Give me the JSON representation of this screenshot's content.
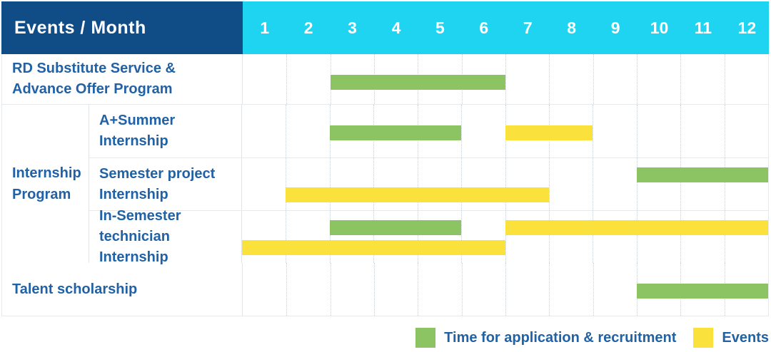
{
  "header": {
    "label": "Events / Month",
    "months": [
      "1",
      "2",
      "3",
      "4",
      "5",
      "6",
      "7",
      "8",
      "9",
      "10",
      "11",
      "12"
    ]
  },
  "colors": {
    "navy": "#104d87",
    "cyan": "#1ed4f0",
    "green": "#8cc363",
    "yellow": "#fbe13c",
    "label_blue": "#2161a5"
  },
  "rows": [
    {
      "id": "rd",
      "label_lines": [
        "RD Substitute Service &",
        "Advance Offer Program"
      ],
      "bars": [
        {
          "color": "green",
          "start": 3,
          "end": 6,
          "lane": "single"
        }
      ]
    },
    {
      "id": "aplus",
      "label_lines": [
        "A+Summer",
        "Internship"
      ],
      "bars": [
        {
          "color": "green",
          "start": 3,
          "end": 5,
          "lane": "single"
        },
        {
          "color": "yellow",
          "start": 7,
          "end": 8,
          "lane": "single"
        }
      ]
    },
    {
      "id": "semester",
      "label_lines": [
        "Semester project",
        "Internship"
      ],
      "bars": [
        {
          "color": "green",
          "start": 10,
          "end": 12,
          "lane": "top"
        },
        {
          "color": "yellow",
          "start": 2,
          "end": 7,
          "lane": "bottom"
        }
      ]
    },
    {
      "id": "insem",
      "label_lines": [
        "In-Semester",
        "technician Internship"
      ],
      "bars": [
        {
          "color": "green",
          "start": 3,
          "end": 5,
          "lane": "top"
        },
        {
          "color": "yellow",
          "start": 7,
          "end": 12,
          "lane": "top"
        },
        {
          "color": "yellow",
          "start": 1,
          "end": 6,
          "lane": "bottom"
        }
      ]
    },
    {
      "id": "talent",
      "label_lines": [
        "Talent scholarship"
      ],
      "bars": [
        {
          "color": "green",
          "start": 10,
          "end": 12,
          "lane": "single"
        }
      ]
    }
  ],
  "group": {
    "label_lines": [
      "Internship",
      "Program"
    ]
  },
  "legend": [
    {
      "color": "green",
      "label": "Time for application & recruitment"
    },
    {
      "color": "yellow",
      "label": "Events"
    }
  ],
  "chart_data": {
    "type": "gantt",
    "title": "Events / Month",
    "x_axis": {
      "label": "Month",
      "ticks": [
        1,
        2,
        3,
        4,
        5,
        6,
        7,
        8,
        9,
        10,
        11,
        12
      ],
      "range": [
        1,
        12
      ]
    },
    "grid": true,
    "legend_position": "bottom-right",
    "legend": {
      "green": "Time for application & recruitment",
      "yellow": "Events"
    },
    "tasks": [
      {
        "name": "RD Substitute Service & Advance Offer Program",
        "group": null,
        "bars": [
          {
            "type": "application_recruitment",
            "color": "green",
            "months": [
              3,
              6
            ]
          }
        ]
      },
      {
        "name": "A+Summer Internship",
        "group": "Internship Program",
        "bars": [
          {
            "type": "application_recruitment",
            "color": "green",
            "months": [
              3,
              5
            ]
          },
          {
            "type": "event",
            "color": "yellow",
            "months": [
              7,
              8
            ]
          }
        ]
      },
      {
        "name": "Semester project Internship",
        "group": "Internship Program",
        "bars": [
          {
            "type": "application_recruitment",
            "color": "green",
            "months": [
              10,
              12
            ]
          },
          {
            "type": "event",
            "color": "yellow",
            "months": [
              2,
              7
            ]
          }
        ]
      },
      {
        "name": "In-Semester technician Internship",
        "group": "Internship Program",
        "bars": [
          {
            "type": "application_recruitment",
            "color": "green",
            "months": [
              3,
              5
            ]
          },
          {
            "type": "event",
            "color": "yellow",
            "months": [
              7,
              12
            ]
          },
          {
            "type": "event",
            "color": "yellow",
            "months": [
              1,
              6
            ]
          }
        ]
      },
      {
        "name": "Talent scholarship",
        "group": null,
        "bars": [
          {
            "type": "application_recruitment",
            "color": "green",
            "months": [
              10,
              12
            ]
          }
        ]
      }
    ]
  }
}
